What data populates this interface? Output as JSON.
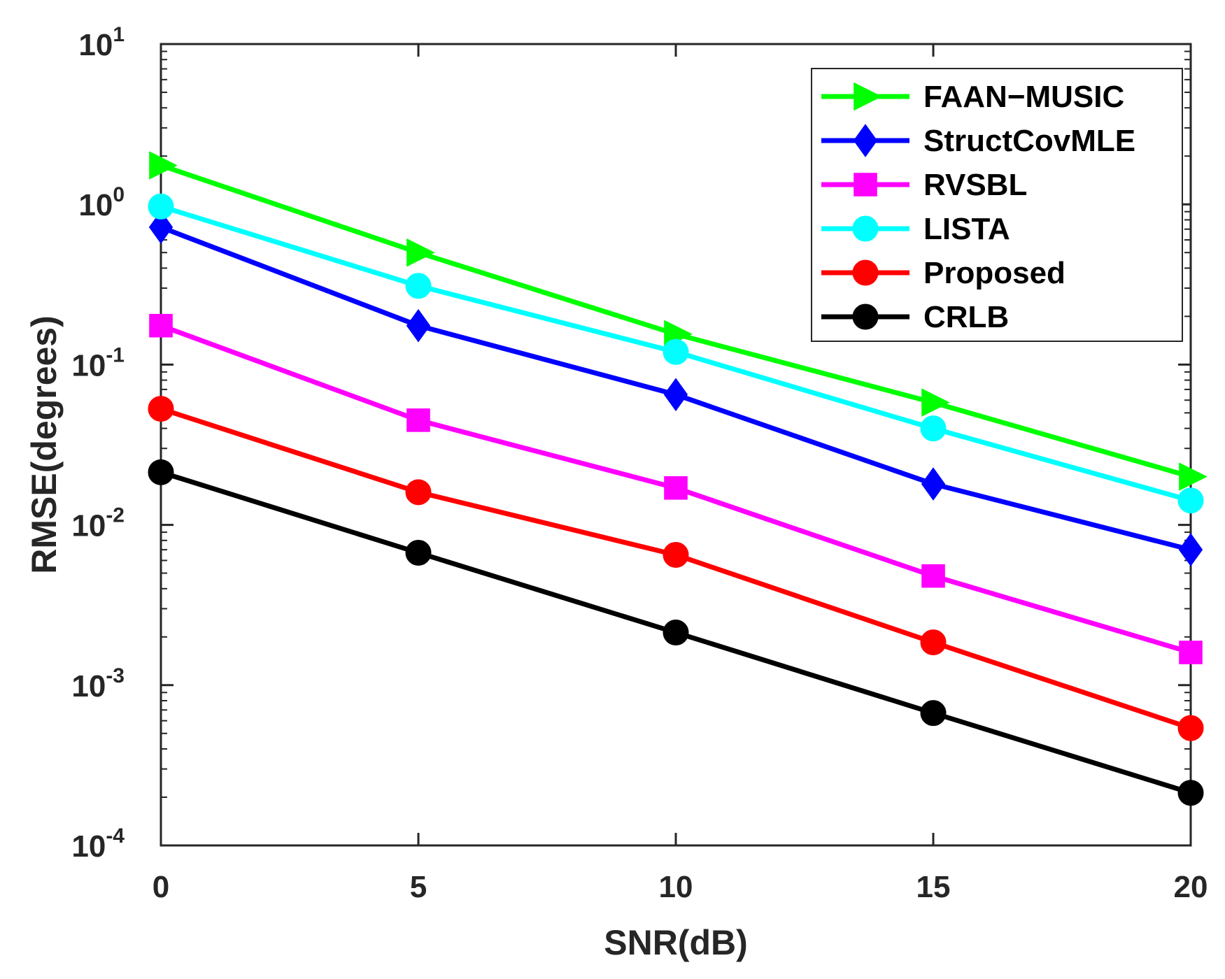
{
  "chart_data": {
    "type": "line",
    "title": "",
    "xlabel": "SNR(dB)",
    "ylabel": "RMSE(degrees)",
    "x": [
      0,
      5,
      10,
      15,
      20
    ],
    "xlim": [
      0,
      20
    ],
    "ylim": [
      0.0001,
      10
    ],
    "yscale": "log",
    "x_ticks": [
      "0",
      "5",
      "10",
      "15",
      "20"
    ],
    "y_ticks": [
      {
        "base": "10",
        "exp": "-4"
      },
      {
        "base": "10",
        "exp": "-3"
      },
      {
        "base": "10",
        "exp": "-2"
      },
      {
        "base": "10",
        "exp": "-1"
      },
      {
        "base": "10",
        "exp": "0"
      },
      {
        "base": "10",
        "exp": "1"
      }
    ],
    "grid": false,
    "legend_position": "top-right",
    "series": [
      {
        "name": "FAAN−MUSIC",
        "color": "#00ff00",
        "marker": "triangle-right",
        "values": [
          1.75,
          0.5,
          0.155,
          0.058,
          0.02
        ]
      },
      {
        "name": "StructCovMLE",
        "color": "#0000ff",
        "marker": "diamond",
        "values": [
          0.72,
          0.175,
          0.065,
          0.018,
          0.007
        ]
      },
      {
        "name": "RVSBL",
        "color": "#ff00ff",
        "marker": "square",
        "values": [
          0.175,
          0.045,
          0.017,
          0.0048,
          0.0016
        ]
      },
      {
        "name": "LISTA",
        "color": "#00ffff",
        "marker": "circle",
        "values": [
          0.97,
          0.31,
          0.12,
          0.04,
          0.0142
        ]
      },
      {
        "name": "Proposed",
        "color": "#ff0000",
        "marker": "circle",
        "values": [
          0.053,
          0.016,
          0.0065,
          0.00185,
          0.00054
        ]
      },
      {
        "name": "CRLB",
        "color": "#000000",
        "marker": "circle",
        "values": [
          0.0213,
          0.0067,
          0.00213,
          0.00067,
          0.000213
        ]
      }
    ]
  }
}
